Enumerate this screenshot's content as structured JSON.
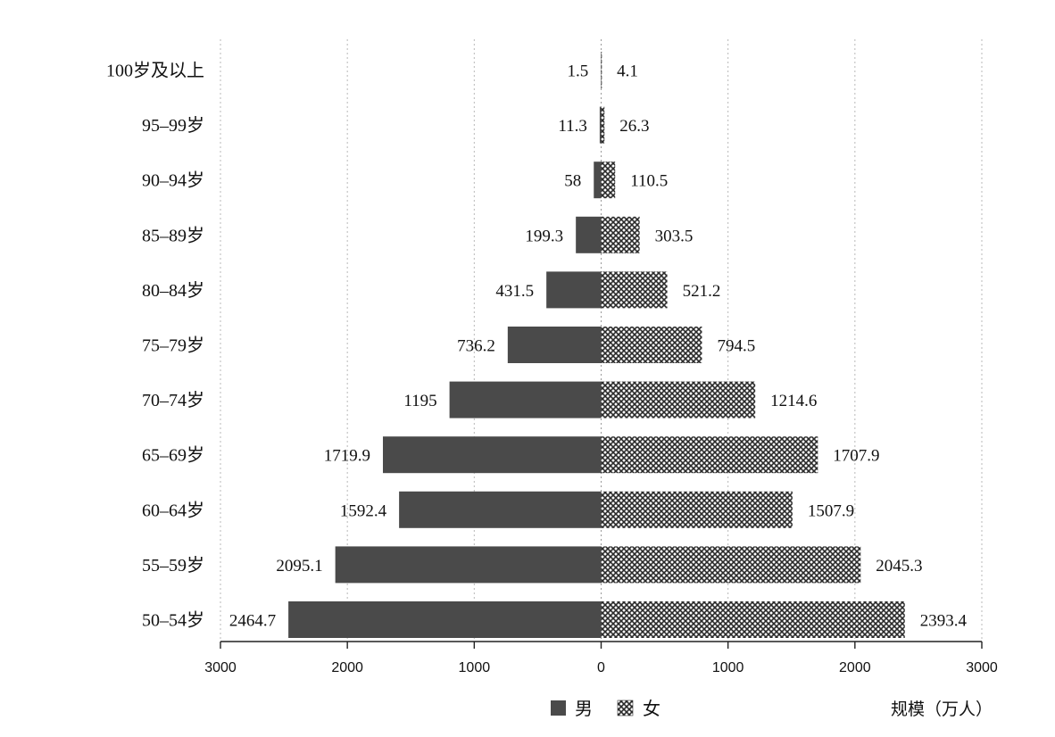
{
  "chart_data": {
    "type": "bar",
    "orientation": "horizontal",
    "layout": "population-pyramid",
    "categories": [
      "100岁及以上",
      "95–99岁",
      "90–94岁",
      "85–89岁",
      "80–84岁",
      "75–79岁",
      "70–74岁",
      "65–69岁",
      "60–64岁",
      "55–59岁",
      "50–54岁"
    ],
    "series": [
      {
        "name": "男",
        "side": "left",
        "color": "#4a4a4a",
        "pattern": "solid",
        "values": [
          1.5,
          11.3,
          58,
          199.3,
          431.5,
          736.2,
          1195,
          1719.9,
          1592.4,
          2095.1,
          2464.7
        ],
        "labels": [
          "1.5",
          "11.3",
          "58",
          "199.3",
          "431.5",
          "736.2",
          "1195",
          "1719.9",
          "1592.4",
          "2095.1",
          "2464.7"
        ]
      },
      {
        "name": "女",
        "side": "right",
        "color": "#555555",
        "pattern": "crosshatch",
        "values": [
          4.1,
          26.3,
          110.5,
          303.5,
          521.2,
          794.5,
          1214.6,
          1707.9,
          1507.9,
          2045.3,
          2393.4
        ],
        "labels": [
          "4.1",
          "26.3",
          "110.5",
          "303.5",
          "521.2",
          "794.5",
          "1214.6",
          "1707.9",
          "1507.9",
          "2045.3",
          "2393.4"
        ]
      }
    ],
    "xlim": [
      -3000,
      3000
    ],
    "ticks": [
      -3000,
      -2000,
      -1000,
      0,
      1000,
      2000,
      3000
    ],
    "tick_labels": [
      "3000",
      "2000",
      "1000",
      "0",
      "1000",
      "2000",
      "3000"
    ],
    "xlabel": "规模（万人）",
    "grid": "vertical dotted",
    "legend": {
      "position": "bottom-center",
      "items": [
        {
          "label": "男",
          "swatch": "solid"
        },
        {
          "label": "女",
          "swatch": "crosshatch"
        }
      ]
    }
  }
}
